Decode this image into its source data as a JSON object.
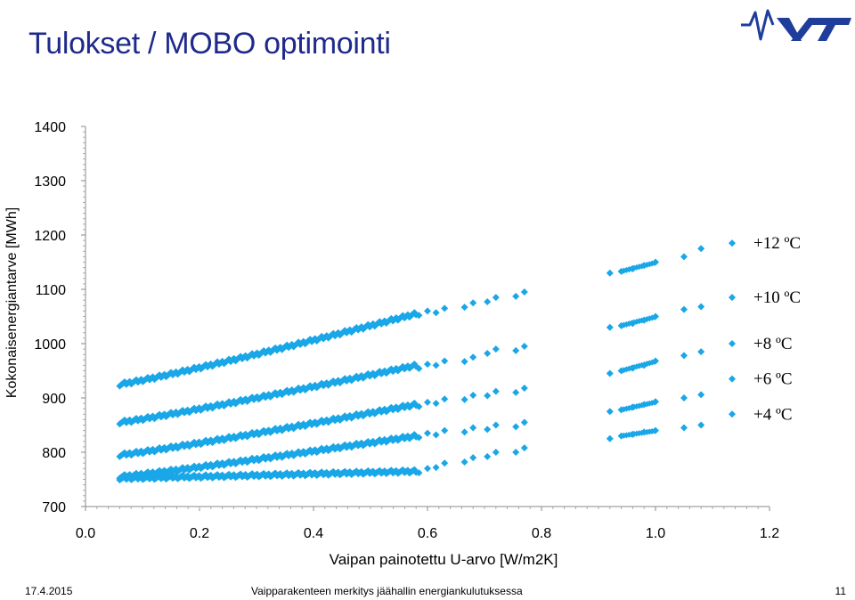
{
  "slide": {
    "title": "Tulokset / MOBO optimointi",
    "logo_text": "VTT",
    "footer_date": "17.4.2015",
    "footer_subject": "Vaipparakenteen merkitys jäähallin energiankulutuksessa",
    "page_number": "11"
  },
  "colors": {
    "title": "#1f2a8c",
    "marker": "#19a7e8",
    "logo": "#1f3d9a",
    "axis": "#888888"
  },
  "chart_data": {
    "type": "scatter",
    "title": "",
    "xlabel": "Vaipan painotettu U-arvo [W/m2K]",
    "ylabel": "Kokonaisenergiantarve [MWh]",
    "xlim": [
      0.0,
      1.2
    ],
    "ylim": [
      700,
      1400
    ],
    "xticks": [
      "0.0",
      "0.2",
      "0.4",
      "0.6",
      "0.8",
      "1.0",
      "1.2"
    ],
    "yticks": [
      "700",
      "800",
      "900",
      "1000",
      "1100",
      "1200",
      "1300",
      "1400"
    ],
    "grid": false,
    "marker": "diamond",
    "legend_position": "right",
    "series": [
      {
        "name": "+12 ºC",
        "x": [
          0.92,
          0.94,
          0.96,
          0.98,
          1.0,
          1.05,
          1.08
        ],
        "y": [
          1130,
          1133,
          1138,
          1144,
          1150,
          1160,
          1175
        ],
        "dense": {
          "x0": 0.06,
          "x1": 0.58,
          "y0": 925,
          "y1": 1055
        },
        "sparse": {
          "x": [
            0.6,
            0.63,
            0.68,
            0.72,
            0.77
          ],
          "y": [
            1060,
            1065,
            1075,
            1085,
            1095
          ]
        }
      },
      {
        "name": "+10 ºC",
        "x": [
          0.92,
          0.94,
          0.96,
          0.98,
          1.0,
          1.05,
          1.08
        ],
        "y": [
          1030,
          1033,
          1037,
          1043,
          1050,
          1063,
          1068
        ],
        "dense": {
          "x0": 0.06,
          "x1": 0.58,
          "y0": 855,
          "y1": 960
        },
        "sparse": {
          "x": [
            0.6,
            0.63,
            0.68,
            0.72,
            0.77
          ],
          "y": [
            962,
            968,
            975,
            990,
            995
          ]
        }
      },
      {
        "name": "+8 ºC",
        "x": [
          0.92,
          0.94,
          0.96,
          0.98,
          1.0,
          1.05,
          1.08
        ],
        "y": [
          945,
          950,
          955,
          960,
          968,
          978,
          985
        ],
        "dense": {
          "x0": 0.06,
          "x1": 0.58,
          "y0": 795,
          "y1": 888
        },
        "sparse": {
          "x": [
            0.6,
            0.63,
            0.68,
            0.72,
            0.77
          ],
          "y": [
            892,
            898,
            905,
            912,
            918
          ]
        }
      },
      {
        "name": "+6 ºC",
        "x": [
          0.92,
          0.94,
          0.96,
          0.98,
          1.0,
          1.05,
          1.08
        ],
        "y": [
          875,
          878,
          883,
          888,
          893,
          900,
          906
        ],
        "dense": {
          "x0": 0.06,
          "x1": 0.58,
          "y0": 755,
          "y1": 830
        },
        "sparse": {
          "x": [
            0.6,
            0.63,
            0.68,
            0.72,
            0.77
          ],
          "y": [
            835,
            840,
            845,
            850,
            855
          ]
        }
      },
      {
        "name": "+4 ºC",
        "x": [
          0.92,
          0.94,
          0.96,
          0.98,
          1.0,
          1.05,
          1.08
        ],
        "y": [
          825,
          830,
          833,
          837,
          840,
          845,
          850
        ],
        "dense": {
          "x0": 0.06,
          "x1": 0.58,
          "y0": 752,
          "y1": 765
        },
        "sparse": {
          "x": [
            0.6,
            0.63,
            0.68,
            0.72,
            0.77
          ],
          "y": [
            770,
            780,
            790,
            800,
            808
          ]
        }
      }
    ]
  }
}
